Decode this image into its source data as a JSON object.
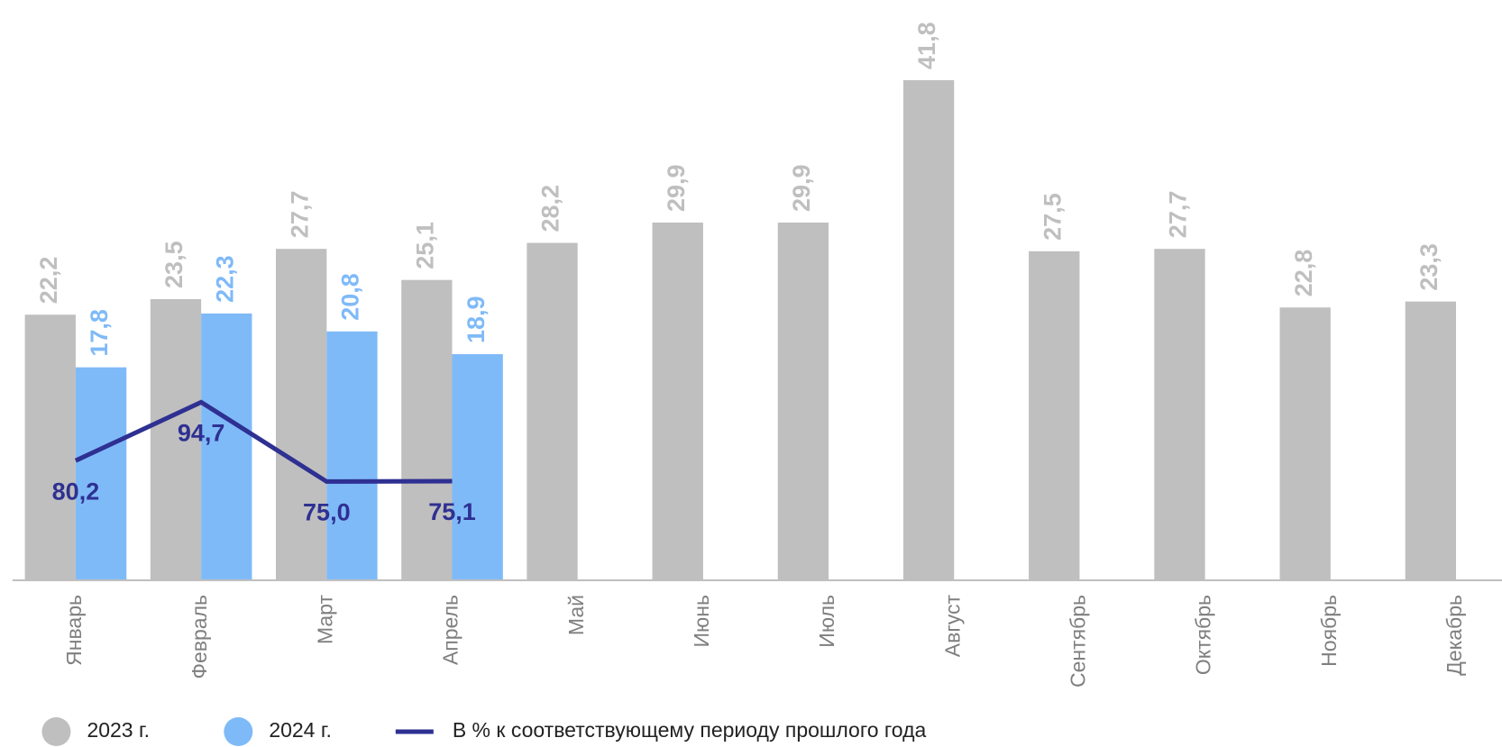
{
  "chart_data": {
    "type": "bar",
    "categories": [
      "Январь",
      "Февраль",
      "Март",
      "Апрель",
      "Май",
      "Июнь",
      "Июль",
      "Август",
      "Сентябрь",
      "Октябрь",
      "Ноябрь",
      "Декабрь"
    ],
    "ylim": [
      0,
      48.5
    ],
    "y2lim": [
      50.5,
      194.5
    ],
    "series": [
      {
        "name": "2023 г.",
        "color": "#bfbfbf",
        "values": [
          22.2,
          23.5,
          27.7,
          25.1,
          28.2,
          29.9,
          29.9,
          41.8,
          27.5,
          27.7,
          22.8,
          23.3
        ],
        "value_labels": [
          "22,2",
          "23,5",
          "27,7",
          "25,1",
          "28,2",
          "29,9",
          "29,9",
          "41,8",
          "27,5",
          "27,7",
          "22,8",
          "23,3"
        ]
      },
      {
        "name": "2024 г.",
        "color": "#7fbaf8",
        "values": [
          17.8,
          22.3,
          20.8,
          18.9,
          null,
          null,
          null,
          null,
          null,
          null,
          null,
          null
        ],
        "value_labels": [
          "17,8",
          "22,3",
          "20,8",
          "18,9",
          null,
          null,
          null,
          null,
          null,
          null,
          null,
          null
        ]
      },
      {
        "name": "В % к соответствующему периоду прошлого года",
        "color": "#2e3092",
        "type": "line",
        "axis": "y2",
        "values": [
          80.2,
          94.7,
          75.0,
          75.1,
          null,
          null,
          null,
          null,
          null,
          null,
          null,
          null
        ],
        "value_labels": [
          "80,2",
          "94,7",
          "75,0",
          "75,1",
          null,
          null,
          null,
          null,
          null,
          null,
          null,
          null
        ]
      }
    ]
  }
}
